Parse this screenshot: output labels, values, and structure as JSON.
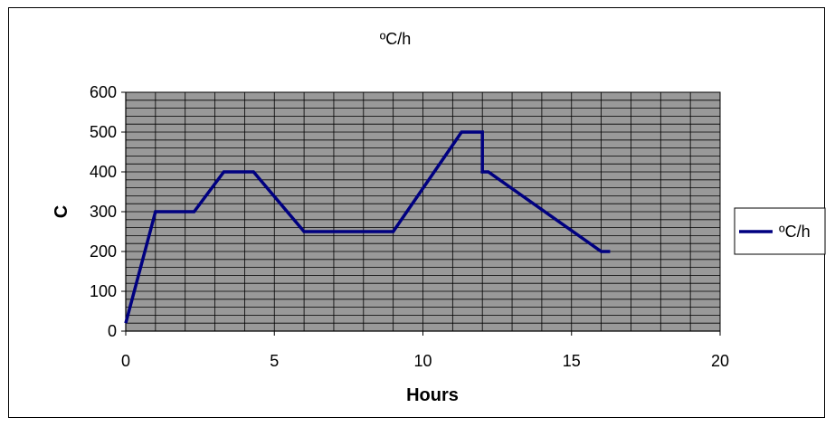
{
  "chart_data": {
    "type": "line",
    "title": "ºC/h",
    "xlabel": "Hours",
    "ylabel": "C",
    "xlim": [
      0,
      20
    ],
    "ylim": [
      0,
      600
    ],
    "x_ticks": [
      0,
      5,
      10,
      15,
      20
    ],
    "y_ticks": [
      0,
      100,
      200,
      300,
      400,
      500,
      600
    ],
    "grid": true,
    "legend_position": "right",
    "colors": {
      "plot_background": "#999999",
      "grid": "#000000",
      "series_line": "#000080"
    },
    "series": [
      {
        "name": "ºC/h",
        "x": [
          0,
          1,
          2.3,
          3.3,
          4.3,
          6,
          9,
          11.3,
          12,
          12,
          12.2,
          16,
          16.3
        ],
        "y": [
          20,
          300,
          300,
          400,
          400,
          250,
          250,
          500,
          500,
          400,
          400,
          200,
          200
        ]
      }
    ]
  }
}
